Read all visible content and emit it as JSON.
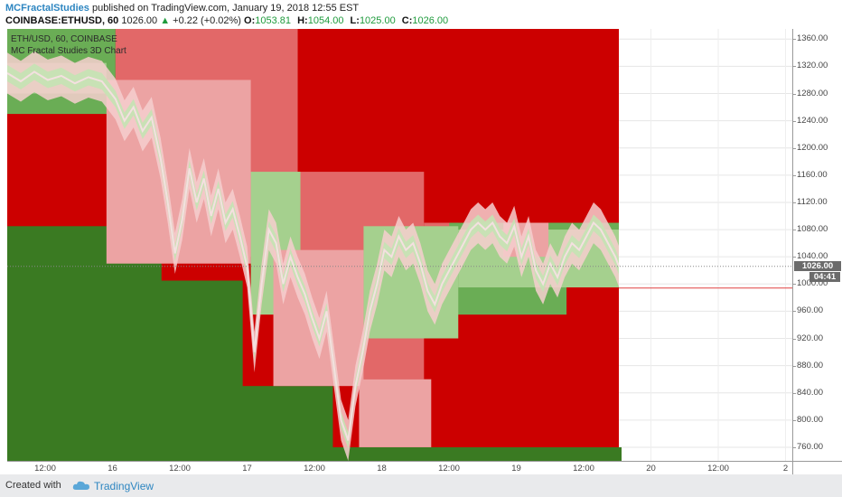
{
  "header": {
    "author": "MCFractalStudies",
    "published_text": "published on TradingView.com, January 19, 2018 12:55 EST",
    "symbol": "COINBASE:ETHUSD, 60",
    "last_price": "1026.00",
    "change_arrow": "▲",
    "change": "+0.22 (+0.02%)",
    "ohlc": {
      "o_label": "O:",
      "o": "1053.81",
      "h_label": "H:",
      "h": "1054.00",
      "l_label": "L:",
      "l": "1025.00",
      "c_label": "C:",
      "c": "1026.00"
    }
  },
  "legend": {
    "series": "ETH/USD, 60, COINBASE",
    "indicator": "MC Fractal Studies 3D Chart"
  },
  "price_axis": {
    "ticks": [
      "1360.00",
      "1320.00",
      "1280.00",
      "1240.00",
      "1200.00",
      "1160.00",
      "1120.00",
      "1080.00",
      "1040.00",
      "1000.00",
      "960.00",
      "920.00",
      "880.00",
      "840.00",
      "800.00",
      "760.00"
    ],
    "current_price": "1026.00",
    "countdown": "04:41"
  },
  "time_axis": {
    "labels": [
      "12:00",
      "16",
      "12:00",
      "17",
      "12:00",
      "18",
      "12:00",
      "19",
      "12:00",
      "20",
      "12:00",
      "2"
    ]
  },
  "footer": {
    "created_with": "Created with",
    "brand": "TradingView"
  },
  "colors": {
    "dark_green": "#3a7a22",
    "mid_green": "#6aad55",
    "light_green": "#a5d08e",
    "pale_green": "#c4e3b3",
    "dark_red": "#cc0000",
    "mid_red": "#e26868",
    "light_red": "#eca3a3",
    "pale_red": "#f6cfcf",
    "price_line": "#e04040"
  },
  "chart_data": {
    "type": "area",
    "title": "ETH/USD, 60, COINBASE",
    "subtitle": "MC Fractal Studies 3D Chart",
    "xlabel": "",
    "ylabel": "",
    "ylim": [
      740,
      1375
    ],
    "grid": true,
    "x_ticks": [
      "12:00",
      "16",
      "12:00",
      "17",
      "12:00",
      "18",
      "12:00",
      "19",
      "12:00",
      "20",
      "12:00",
      "2"
    ],
    "last_price": 1026.0,
    "projected_level": 994,
    "price_path": [
      {
        "t": 0,
        "p": 1310
      },
      {
        "t": 15,
        "p": 1298
      },
      {
        "t": 30,
        "p": 1312
      },
      {
        "t": 45,
        "p": 1300
      },
      {
        "t": 60,
        "p": 1306
      },
      {
        "t": 75,
        "p": 1295
      },
      {
        "t": 90,
        "p": 1304
      },
      {
        "t": 105,
        "p": 1298
      },
      {
        "t": 120,
        "p": 1272
      },
      {
        "t": 130,
        "p": 1240
      },
      {
        "t": 140,
        "p": 1260
      },
      {
        "t": 150,
        "p": 1225
      },
      {
        "t": 160,
        "p": 1245
      },
      {
        "t": 170,
        "p": 1185
      },
      {
        "t": 178,
        "p": 1120
      },
      {
        "t": 186,
        "p": 1045
      },
      {
        "t": 194,
        "p": 1095
      },
      {
        "t": 202,
        "p": 1170
      },
      {
        "t": 210,
        "p": 1120
      },
      {
        "t": 218,
        "p": 1155
      },
      {
        "t": 226,
        "p": 1100
      },
      {
        "t": 234,
        "p": 1140
      },
      {
        "t": 242,
        "p": 1090
      },
      {
        "t": 250,
        "p": 1110
      },
      {
        "t": 258,
        "p": 1070
      },
      {
        "t": 266,
        "p": 1025
      },
      {
        "t": 274,
        "p": 900
      },
      {
        "t": 282,
        "p": 1000
      },
      {
        "t": 290,
        "p": 1080
      },
      {
        "t": 298,
        "p": 1060
      },
      {
        "t": 306,
        "p": 1000
      },
      {
        "t": 314,
        "p": 1040
      },
      {
        "t": 322,
        "p": 1010
      },
      {
        "t": 330,
        "p": 985
      },
      {
        "t": 338,
        "p": 950
      },
      {
        "t": 346,
        "p": 920
      },
      {
        "t": 354,
        "p": 960
      },
      {
        "t": 362,
        "p": 880
      },
      {
        "t": 370,
        "p": 800
      },
      {
        "t": 378,
        "p": 770
      },
      {
        "t": 386,
        "p": 850
      },
      {
        "t": 394,
        "p": 900
      },
      {
        "t": 402,
        "p": 960
      },
      {
        "t": 410,
        "p": 1000
      },
      {
        "t": 418,
        "p": 1050
      },
      {
        "t": 426,
        "p": 1040
      },
      {
        "t": 434,
        "p": 1070
      },
      {
        "t": 442,
        "p": 1050
      },
      {
        "t": 450,
        "p": 1060
      },
      {
        "t": 458,
        "p": 1030
      },
      {
        "t": 466,
        "p": 990
      },
      {
        "t": 474,
        "p": 970
      },
      {
        "t": 482,
        "p": 1000
      },
      {
        "t": 490,
        "p": 1020
      },
      {
        "t": 498,
        "p": 1040
      },
      {
        "t": 506,
        "p": 1060
      },
      {
        "t": 514,
        "p": 1080
      },
      {
        "t": 522,
        "p": 1090
      },
      {
        "t": 530,
        "p": 1080
      },
      {
        "t": 538,
        "p": 1090
      },
      {
        "t": 546,
        "p": 1070
      },
      {
        "t": 554,
        "p": 1060
      },
      {
        "t": 562,
        "p": 1085
      },
      {
        "t": 570,
        "p": 1040
      },
      {
        "t": 578,
        "p": 1070
      },
      {
        "t": 586,
        "p": 1020
      },
      {
        "t": 594,
        "p": 1000
      },
      {
        "t": 602,
        "p": 1030
      },
      {
        "t": 610,
        "p": 1010
      },
      {
        "t": 618,
        "p": 1040
      },
      {
        "t": 626,
        "p": 1060
      },
      {
        "t": 634,
        "p": 1050
      },
      {
        "t": 642,
        "p": 1070
      },
      {
        "t": 650,
        "p": 1090
      },
      {
        "t": 658,
        "p": 1080
      },
      {
        "t": 666,
        "p": 1060
      },
      {
        "t": 674,
        "p": 1040
      },
      {
        "t": 678,
        "p": 1026
      }
    ],
    "support_steps": [
      {
        "t0": 0,
        "t1": 170,
        "p": 1085
      },
      {
        "t0": 170,
        "t1": 260,
        "p": 1005
      },
      {
        "t0": 260,
        "t1": 360,
        "p": 850
      },
      {
        "t0": 360,
        "t1": 680,
        "p": 760
      }
    ],
    "resistance_steps": [
      {
        "t0": 0,
        "t1": 168,
        "p": 1375
      },
      {
        "t0": 168,
        "t1": 322,
        "p": 1375
      },
      {
        "t0": 322,
        "t1": 462,
        "p": 1165
      },
      {
        "t0": 462,
        "t1": 680,
        "p": 1090
      }
    ]
  }
}
